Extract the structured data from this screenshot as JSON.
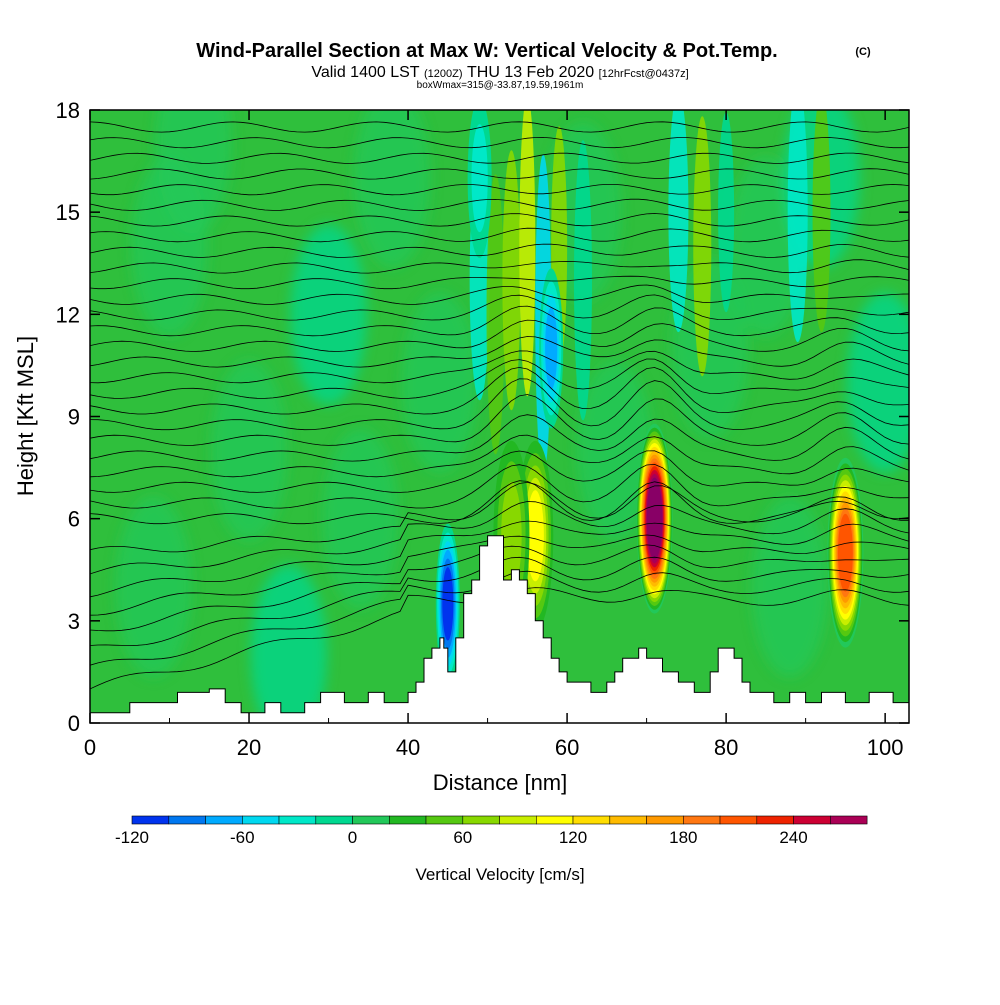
{
  "header": {
    "title": "Wind-Parallel Section at Max W: Vertical Velocity & Pot.Temp.",
    "title_mark": "(C)",
    "valid_prefix": "Valid 1400 LST",
    "valid_utc": "(1200Z)",
    "valid_date": "THU 13 Feb 2020",
    "forecast": "[12hrFcst@0437z]",
    "box_info": "boxWmax=315@-33.87,19.59,1961m"
  },
  "chart_data": {
    "type": "heatmap",
    "xlabel": "Distance [nm]",
    "ylabel": "Height [Kft MSL]",
    "xlim": [
      0,
      103
    ],
    "ylim": [
      0,
      18
    ],
    "xticks": [
      "0",
      "20",
      "40",
      "60",
      "80",
      "100"
    ],
    "yticks": [
      "0",
      "3",
      "6",
      "9",
      "12",
      "15",
      "18"
    ],
    "terrain": {
      "x": [
        0,
        0,
        5,
        5,
        11,
        11,
        15,
        15,
        17,
        17,
        19,
        19,
        22,
        22,
        24,
        24,
        27,
        27,
        29,
        29,
        32,
        32,
        35,
        35,
        37,
        37,
        40,
        40,
        41,
        41,
        42,
        42,
        43,
        43,
        44,
        44,
        44.5,
        44.5,
        45,
        45,
        46,
        46,
        47,
        47,
        48,
        48,
        49,
        49,
        50,
        50,
        52,
        52,
        53,
        53,
        54,
        54,
        55,
        55,
        56,
        56,
        57,
        57,
        58,
        58,
        59,
        59,
        60,
        60,
        63,
        63,
        65,
        65,
        66,
        66,
        67,
        67,
        69,
        69,
        70,
        70,
        72,
        72,
        74,
        74,
        76,
        76,
        78,
        78,
        79,
        79,
        81,
        81,
        82,
        82,
        83,
        83,
        86,
        86,
        88,
        88,
        90,
        90,
        92,
        92,
        95,
        95,
        98,
        98,
        101,
        101,
        103,
        103
      ],
      "z": [
        0,
        0.3,
        0.3,
        0.6,
        0.6,
        0.9,
        0.9,
        1.0,
        1.0,
        0.6,
        0.6,
        0.3,
        0.3,
        0.6,
        0.6,
        0.3,
        0.3,
        0.6,
        0.6,
        0.9,
        0.9,
        0.6,
        0.6,
        0.9,
        0.9,
        0.6,
        0.6,
        0.9,
        0.9,
        1.2,
        1.2,
        1.9,
        1.9,
        2.2,
        2.2,
        2.5,
        2.5,
        2.2,
        2.2,
        1.5,
        1.5,
        2.5,
        2.5,
        3.8,
        3.8,
        4.2,
        4.2,
        5.2,
        5.2,
        5.5,
        5.5,
        4.2,
        4.2,
        4.5,
        4.5,
        4.2,
        4.2,
        3.8,
        3.8,
        3.0,
        3.0,
        2.5,
        2.5,
        1.9,
        1.9,
        1.5,
        1.5,
        1.2,
        1.2,
        0.9,
        0.9,
        1.2,
        1.2,
        1.5,
        1.5,
        1.9,
        1.9,
        2.2,
        2.2,
        1.9,
        1.9,
        1.5,
        1.5,
        1.2,
        1.2,
        0.9,
        0.9,
        1.5,
        1.5,
        2.2,
        2.2,
        1.9,
        1.9,
        1.2,
        1.2,
        0.9,
        0.9,
        0.6,
        0.6,
        0.9,
        0.9,
        0.6,
        0.6,
        0.9,
        0.9,
        0.6,
        0.6,
        0.9,
        0.9,
        0.6,
        0.6,
        0
      ]
    },
    "updrafts": [
      {
        "x": 71,
        "z_center": 6.0,
        "peak_w": 315
      },
      {
        "x": 95,
        "z_center": 5.0,
        "peak_w": 210
      },
      {
        "x": 56,
        "z_center": 5.5,
        "peak_w": 100
      },
      {
        "x": 53,
        "z_center": 5.5,
        "peak_w": 60
      }
    ],
    "downdrafts": [
      {
        "x": 45,
        "z_center": 3.5,
        "peak_w": -110
      },
      {
        "x": 58,
        "z_center": 11,
        "peak_w": -70
      },
      {
        "x": 49,
        "z_center": 16,
        "peak_w": -40
      }
    ],
    "theta_label_positions_note": "",
    "colorbar": {
      "label": "Vertical Velocity [cm/s]",
      "min": -120,
      "max": 280,
      "step": 20,
      "tick_labels": [
        "-120",
        "-60",
        "0",
        "60",
        "120",
        "180",
        "240"
      ],
      "colors": [
        "#0000ff",
        "#0033ee",
        "#0077f0",
        "#00aaff",
        "#00d8f0",
        "#00e8c8",
        "#00d890",
        "#22c85a",
        "#22b822",
        "#55c811",
        "#88d800",
        "#c8ee00",
        "#ffff00",
        "#ffdd00",
        "#ffbb00",
        "#ff9900",
        "#ff7711",
        "#ff5500",
        "#ee2200",
        "#cc0033",
        "#aa0055",
        "#880066"
      ]
    },
    "grid": false,
    "legend": "bottom"
  }
}
